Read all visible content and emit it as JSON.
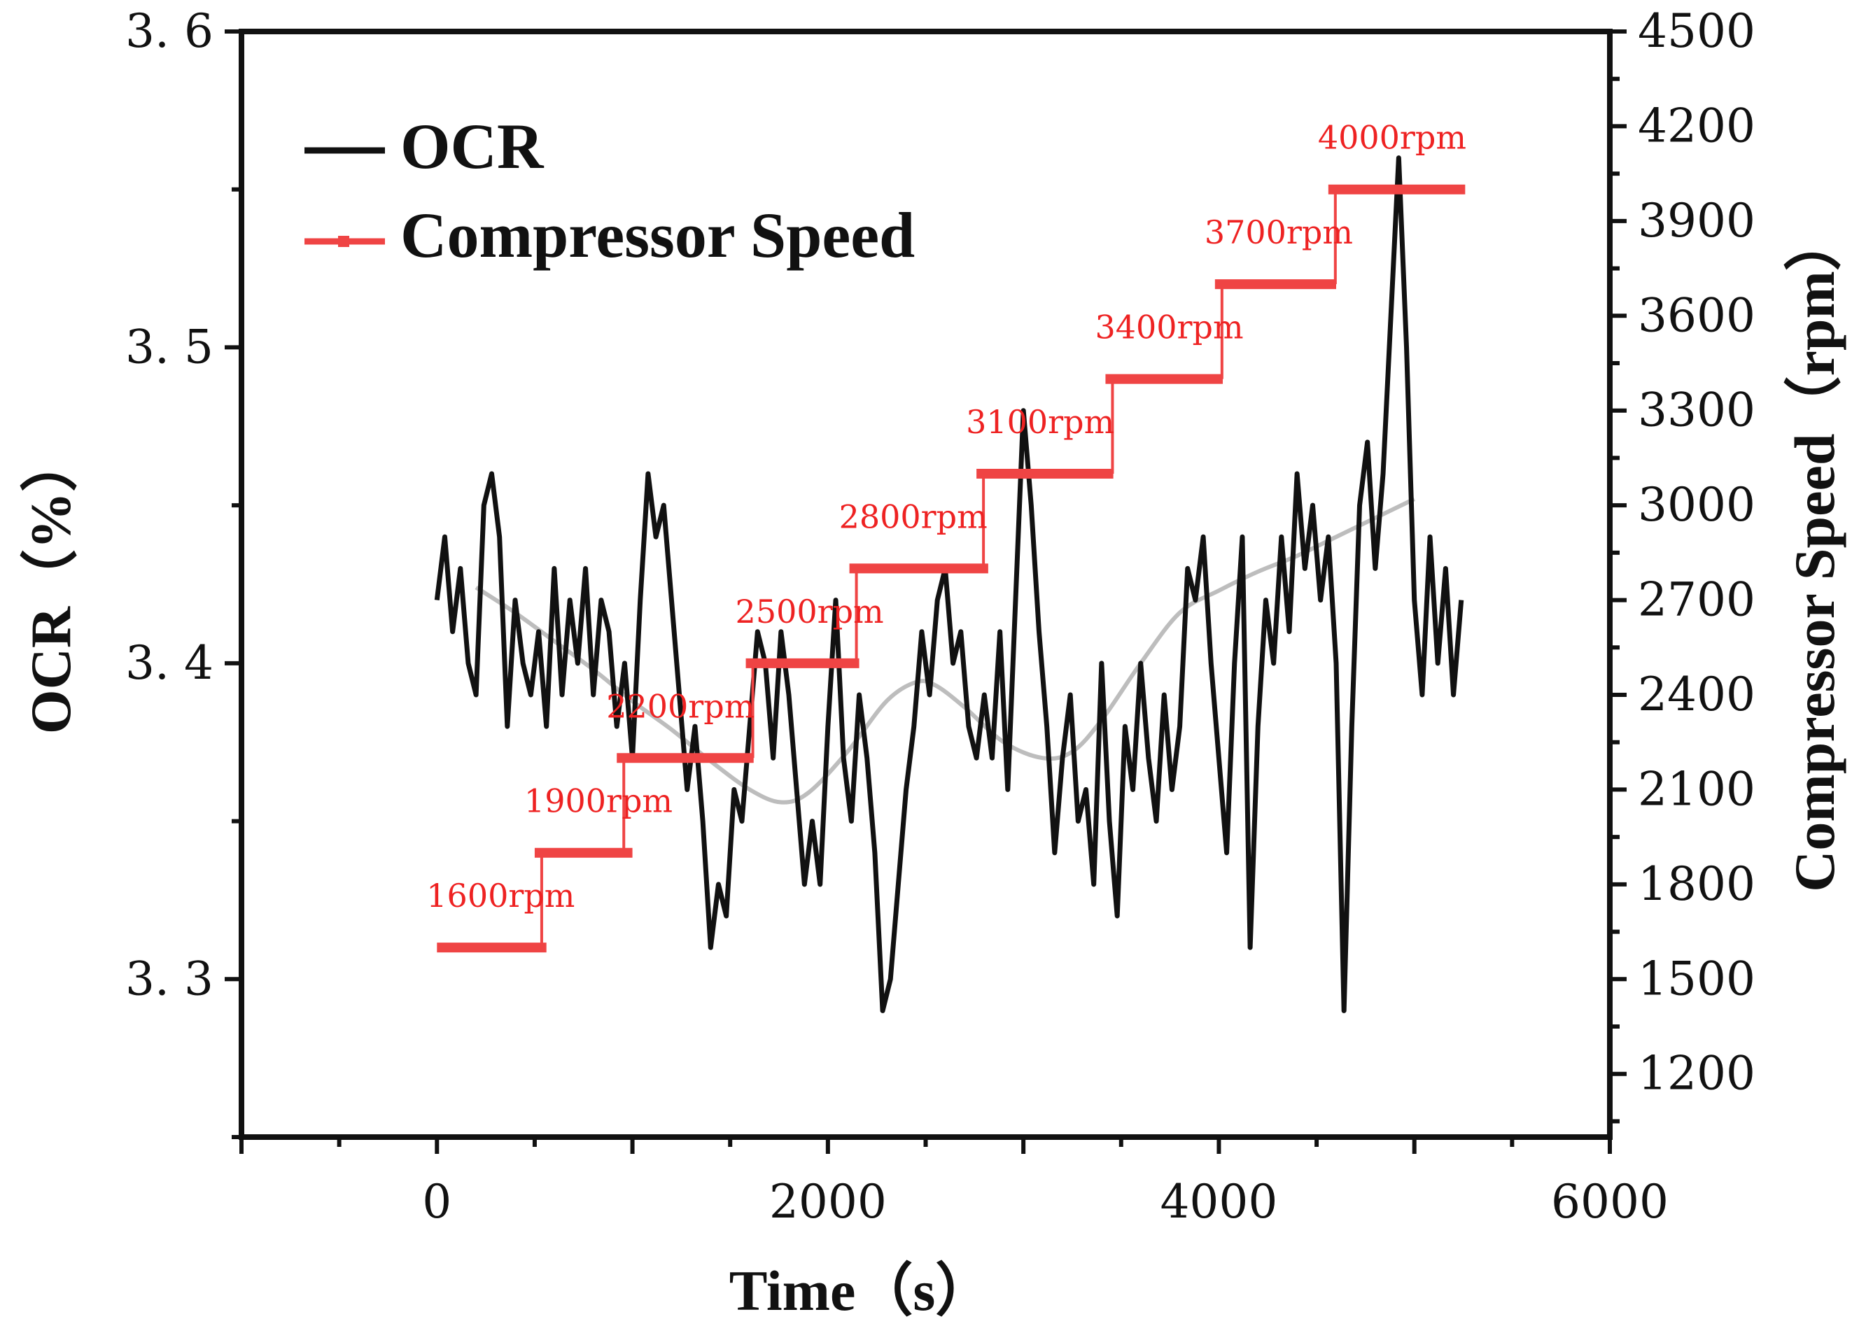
{
  "chart_data": {
    "type": "line",
    "title": "",
    "xlabel": "Time（s）",
    "ylabel": "OCR（%）",
    "y2label": "Compressor Speed（rpm）",
    "xlim": [
      -1000,
      6000
    ],
    "ylim": [
      3.25,
      3.6
    ],
    "y2lim": [
      1000,
      4500
    ],
    "xticks": [
      "0",
      "2000",
      "4000",
      "6000"
    ],
    "xtick_values": [
      0,
      2000,
      4000,
      6000
    ],
    "yticks": [
      "3. 3",
      "3. 4",
      "3. 5",
      "3. 6"
    ],
    "ytick_values": [
      3.3,
      3.4,
      3.5,
      3.6
    ],
    "y2ticks": [
      "1200",
      "1500",
      "1800",
      "2100",
      "2400",
      "2700",
      "3000",
      "3300",
      "3600",
      "3900",
      "4200",
      "4500"
    ],
    "y2tick_values": [
      1200,
      1500,
      1800,
      2100,
      2400,
      2700,
      3000,
      3300,
      3600,
      3900,
      4200,
      4500
    ],
    "legend": [
      {
        "name": "OCR",
        "color": "#111111"
      },
      {
        "name": "Compressor Speed",
        "color": "#ef4444"
      }
    ],
    "legend_position": "top-left",
    "series": [
      {
        "name": "OCR",
        "axis": "left",
        "color": "#111111",
        "x": [
          0,
          40,
          80,
          120,
          160,
          200,
          240,
          280,
          320,
          360,
          400,
          440,
          480,
          520,
          560,
          600,
          640,
          680,
          720,
          760,
          800,
          840,
          880,
          920,
          960,
          1000,
          1040,
          1080,
          1120,
          1160,
          1200,
          1240,
          1280,
          1320,
          1360,
          1400,
          1440,
          1480,
          1520,
          1560,
          1600,
          1640,
          1680,
          1720,
          1760,
          1800,
          1840,
          1880,
          1920,
          1960,
          2000,
          2040,
          2080,
          2120,
          2160,
          2200,
          2240,
          2280,
          2320,
          2360,
          2400,
          2440,
          2480,
          2520,
          2560,
          2600,
          2640,
          2680,
          2720,
          2760,
          2800,
          2840,
          2880,
          2920,
          2960,
          3000,
          3040,
          3080,
          3120,
          3160,
          3200,
          3240,
          3280,
          3320,
          3360,
          3400,
          3440,
          3480,
          3520,
          3560,
          3600,
          3640,
          3680,
          3720,
          3760,
          3800,
          3840,
          3880,
          3920,
          3960,
          4000,
          4040,
          4080,
          4120,
          4160,
          4200,
          4240,
          4280,
          4320,
          4360,
          4400,
          4440,
          4480,
          4520,
          4560,
          4600,
          4640,
          4680,
          4720,
          4760,
          4800,
          4840,
          4880,
          4920,
          4960,
          5000,
          5040,
          5080,
          5120,
          5160,
          5200,
          5240
        ],
        "values": [
          3.42,
          3.44,
          3.41,
          3.43,
          3.4,
          3.39,
          3.45,
          3.46,
          3.44,
          3.38,
          3.42,
          3.4,
          3.39,
          3.41,
          3.38,
          3.43,
          3.39,
          3.42,
          3.4,
          3.43,
          3.39,
          3.42,
          3.41,
          3.38,
          3.4,
          3.37,
          3.42,
          3.46,
          3.44,
          3.45,
          3.42,
          3.39,
          3.36,
          3.38,
          3.35,
          3.31,
          3.33,
          3.32,
          3.36,
          3.35,
          3.38,
          3.41,
          3.4,
          3.37,
          3.41,
          3.39,
          3.36,
          3.33,
          3.35,
          3.33,
          3.38,
          3.42,
          3.37,
          3.35,
          3.39,
          3.37,
          3.34,
          3.29,
          3.3,
          3.33,
          3.36,
          3.38,
          3.41,
          3.39,
          3.42,
          3.43,
          3.4,
          3.41,
          3.38,
          3.37,
          3.39,
          3.37,
          3.41,
          3.36,
          3.42,
          3.48,
          3.45,
          3.41,
          3.38,
          3.34,
          3.37,
          3.39,
          3.35,
          3.36,
          3.33,
          3.4,
          3.35,
          3.32,
          3.38,
          3.36,
          3.4,
          3.37,
          3.35,
          3.39,
          3.36,
          3.38,
          3.43,
          3.42,
          3.44,
          3.4,
          3.37,
          3.34,
          3.4,
          3.44,
          3.31,
          3.38,
          3.42,
          3.4,
          3.44,
          3.41,
          3.46,
          3.43,
          3.45,
          3.42,
          3.44,
          3.4,
          3.29,
          3.38,
          3.45,
          3.47,
          3.43,
          3.46,
          3.51,
          3.56,
          3.5,
          3.42,
          3.39,
          3.44,
          3.4,
          3.43,
          3.39,
          3.42
        ]
      },
      {
        "name": "OCR trend",
        "axis": "left",
        "color": "#bdbdbd",
        "x": [
          200,
          400,
          600,
          800,
          1000,
          1200,
          1400,
          1600,
          1760,
          1900,
          2100,
          2300,
          2450,
          2550,
          2700,
          2900,
          3100,
          3250,
          3400,
          3600,
          3800,
          4000,
          4200,
          4400,
          4600,
          4800,
          5000
        ],
        "values": [
          3.424,
          3.416,
          3.407,
          3.398,
          3.388,
          3.379,
          3.369,
          3.36,
          3.356,
          3.359,
          3.372,
          3.388,
          3.394,
          3.393,
          3.386,
          3.375,
          3.37,
          3.372,
          3.382,
          3.4,
          3.416,
          3.423,
          3.429,
          3.434,
          3.44,
          3.446,
          3.452
        ]
      },
      {
        "name": "Compressor Speed",
        "axis": "right",
        "color": "#ef4444",
        "steps": [
          {
            "speed": 1600,
            "label": "1600rpm",
            "start": 0,
            "end": 560
          },
          {
            "speed": 1900,
            "label": "1900rpm",
            "start": 500,
            "end": 1000
          },
          {
            "speed": 2200,
            "label": "2200rpm",
            "start": 920,
            "end": 1620
          },
          {
            "speed": 2500,
            "label": "2500rpm",
            "start": 1580,
            "end": 2160
          },
          {
            "speed": 2800,
            "label": "2800rpm",
            "start": 2110,
            "end": 2820
          },
          {
            "speed": 3100,
            "label": "3100rpm",
            "start": 2760,
            "end": 3460
          },
          {
            "speed": 3400,
            "label": "3400rpm",
            "start": 3420,
            "end": 4020
          },
          {
            "speed": 3700,
            "label": "3700rpm",
            "start": 3980,
            "end": 4600
          },
          {
            "speed": 4000,
            "label": "4000rpm",
            "start": 4560,
            "end": 5260
          }
        ]
      }
    ]
  }
}
